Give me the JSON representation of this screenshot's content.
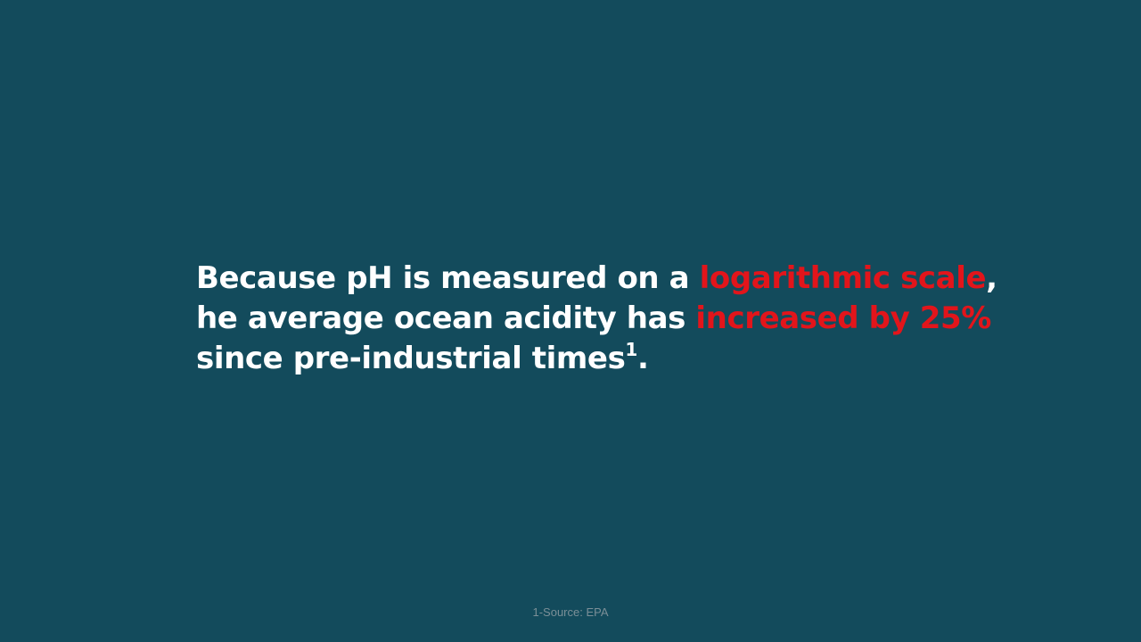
{
  "slide": {
    "line1": {
      "pre": "Because pH is measured on a ",
      "highlight": "logarithmic scale",
      "post": ","
    },
    "line2": {
      "pre": "he average ocean acidity has ",
      "highlight": "increased by 25%"
    },
    "line3": {
      "pre": "since pre-industrial times",
      "superscript": "1",
      "post": "."
    },
    "footnote": "1-Source:  EPA",
    "colors": {
      "background": "#134b5c",
      "text": "#ffffff",
      "highlight": "#e2151b",
      "footnote": "#7b8f97"
    }
  }
}
